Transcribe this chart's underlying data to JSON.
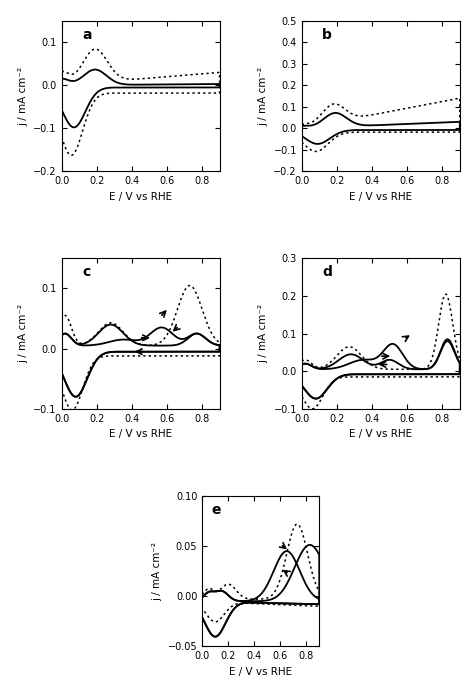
{
  "xlabel": "E / V vs RHE",
  "ylabel": "j / mA cm⁻²",
  "xlim": [
    0.0,
    0.9
  ],
  "panel_a": {
    "ylim": [
      -0.2,
      0.15
    ],
    "yticks": [
      -0.2,
      -0.1,
      0.0,
      0.1
    ],
    "label": "a"
  },
  "panel_b": {
    "ylim": [
      -0.2,
      0.5
    ],
    "yticks": [
      -0.2,
      -0.1,
      0.0,
      0.1,
      0.2,
      0.3,
      0.4,
      0.5
    ],
    "label": "b"
  },
  "panel_c": {
    "ylim": [
      -0.1,
      0.15
    ],
    "yticks": [
      -0.1,
      0.0,
      0.1
    ],
    "label": "c"
  },
  "panel_d": {
    "ylim": [
      -0.1,
      0.3
    ],
    "yticks": [
      -0.1,
      0.0,
      0.1,
      0.2,
      0.3
    ],
    "label": "d"
  },
  "panel_e": {
    "ylim": [
      -0.05,
      0.1
    ],
    "yticks": [
      -0.05,
      0.0,
      0.05,
      0.1
    ],
    "label": "e"
  }
}
